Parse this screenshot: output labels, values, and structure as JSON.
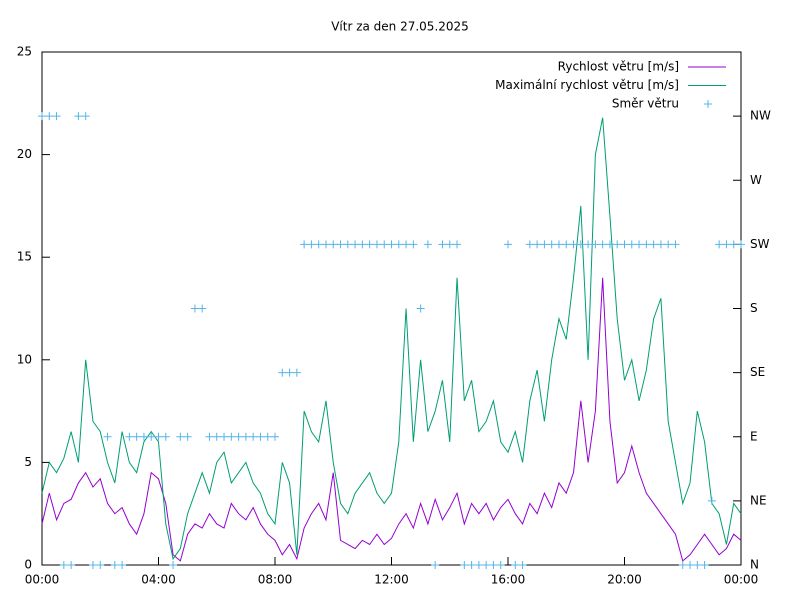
{
  "chart_data": {
    "type": "line",
    "title": "Vítr za den 27.05.2025",
    "x": [
      0,
      0.25,
      0.5,
      0.75,
      1,
      1.25,
      1.5,
      1.75,
      2,
      2.25,
      2.5,
      2.75,
      3,
      3.25,
      3.5,
      3.75,
      4,
      4.25,
      4.5,
      4.75,
      5,
      5.25,
      5.5,
      5.75,
      6,
      6.25,
      6.5,
      6.75,
      7,
      7.25,
      7.5,
      7.75,
      8,
      8.25,
      8.5,
      8.75,
      9,
      9.25,
      9.5,
      9.75,
      10,
      10.25,
      10.5,
      10.75,
      11,
      11.25,
      11.5,
      11.75,
      12,
      12.25,
      12.5,
      12.75,
      13,
      13.25,
      13.5,
      13.75,
      14,
      14.25,
      14.5,
      14.75,
      15,
      15.25,
      15.5,
      15.75,
      16,
      16.25,
      16.5,
      16.75,
      17,
      17.25,
      17.5,
      17.75,
      18,
      18.25,
      18.5,
      18.75,
      19,
      19.25,
      19.5,
      19.75,
      20,
      20.25,
      20.5,
      20.75,
      21,
      21.25,
      21.5,
      21.75,
      22,
      22.25,
      22.5,
      22.75,
      23,
      23.25,
      23.5,
      23.75,
      24
    ],
    "series": [
      {
        "name": "Rychlost větru [m/s]",
        "color": "#9400d3",
        "style": "line",
        "values": [
          2.0,
          3.5,
          2.2,
          3.0,
          3.2,
          4.0,
          4.5,
          3.8,
          4.2,
          3.0,
          2.5,
          2.8,
          2.0,
          1.5,
          2.5,
          4.5,
          4.2,
          3.0,
          0.5,
          0.2,
          1.5,
          2.0,
          1.8,
          2.5,
          2.0,
          1.8,
          3.0,
          2.5,
          2.2,
          2.8,
          2.0,
          1.5,
          1.2,
          0.5,
          1.0,
          0.3,
          1.8,
          2.5,
          3.0,
          2.2,
          4.5,
          1.2,
          1.0,
          0.8,
          1.2,
          1.0,
          1.5,
          1.0,
          1.3,
          2.0,
          2.5,
          1.8,
          3.0,
          2.0,
          3.2,
          2.2,
          2.8,
          3.5,
          2.0,
          3.0,
          2.5,
          3.0,
          2.2,
          2.8,
          3.2,
          2.5,
          2.0,
          3.0,
          2.5,
          3.5,
          2.8,
          4.0,
          3.5,
          4.5,
          8.0,
          5.0,
          7.5,
          14.0,
          7.0,
          4.0,
          4.5,
          5.8,
          4.5,
          3.5,
          3.0,
          2.5,
          2.0,
          1.5,
          0.2,
          0.5,
          1.0,
          1.5,
          1.0,
          0.5,
          0.8,
          1.5,
          1.2
        ]
      },
      {
        "name": "Maximální rychlost větru [m/s]",
        "color": "#009e73",
        "style": "line",
        "values": [
          3.5,
          5.0,
          4.5,
          5.2,
          6.5,
          5.0,
          10.0,
          7.0,
          6.5,
          5.0,
          4.0,
          6.5,
          5.0,
          4.5,
          6.0,
          6.5,
          6.0,
          2.0,
          0.3,
          0.8,
          2.5,
          3.5,
          4.5,
          3.5,
          5.0,
          5.5,
          4.0,
          4.5,
          5.0,
          4.0,
          3.5,
          2.5,
          2.0,
          5.0,
          4.0,
          0.5,
          7.5,
          6.5,
          6.0,
          8.0,
          5.0,
          3.0,
          2.5,
          3.5,
          4.0,
          4.5,
          3.5,
          3.0,
          3.5,
          6.0,
          12.5,
          6.0,
          10.0,
          6.5,
          7.5,
          9.0,
          6.0,
          14.0,
          8.0,
          9.0,
          6.5,
          7.0,
          8.0,
          6.0,
          5.5,
          6.5,
          5.0,
          8.0,
          9.5,
          7.0,
          10.0,
          12.0,
          11.0,
          14.0,
          17.5,
          10.0,
          20.0,
          21.8,
          17.0,
          12.0,
          9.0,
          10.0,
          8.0,
          9.5,
          12.0,
          13.0,
          7.0,
          5.0,
          3.0,
          4.0,
          7.5,
          6.0,
          3.0,
          2.5,
          1.0,
          3.0,
          2.5
        ]
      },
      {
        "name": "Směr větru",
        "color": "#56b4e9",
        "style": "points",
        "axis": "y2",
        "values": [
          7,
          7,
          7,
          0,
          0,
          7,
          7,
          0,
          0,
          2,
          0,
          0,
          2,
          2,
          2,
          2,
          2,
          2,
          0,
          2,
          2,
          4,
          4,
          2,
          2,
          2,
          2,
          2,
          2,
          2,
          2,
          2,
          2,
          3,
          3,
          3,
          5,
          5,
          5,
          5,
          5,
          5,
          5,
          5,
          5,
          5,
          5,
          5,
          5,
          5,
          5,
          5,
          4,
          5,
          0,
          5,
          5,
          5,
          0,
          0,
          0,
          0,
          0,
          0,
          5,
          0,
          0,
          5,
          5,
          5,
          5,
          5,
          5,
          5,
          5,
          5,
          5,
          5,
          5,
          5,
          5,
          5,
          5,
          5,
          5,
          5,
          5,
          5,
          0,
          0,
          0,
          0,
          1,
          5,
          5,
          5,
          5
        ]
      }
    ],
    "xlim": [
      0,
      24
    ],
    "xticks": [
      {
        "value": 0,
        "label": "00:00"
      },
      {
        "value": 4,
        "label": "04:00"
      },
      {
        "value": 8,
        "label": "08:00"
      },
      {
        "value": 12,
        "label": "12:00"
      },
      {
        "value": 16,
        "label": "16:00"
      },
      {
        "value": 20,
        "label": "20:00"
      },
      {
        "value": 24,
        "label": "00:00"
      }
    ],
    "ylim": [
      0,
      25
    ],
    "yticks": [
      0,
      5,
      10,
      15,
      20,
      25
    ],
    "y2lim": [
      0,
      8
    ],
    "y2ticks": [
      {
        "value": 0,
        "label": "N"
      },
      {
        "value": 1,
        "label": "NE"
      },
      {
        "value": 2,
        "label": "E"
      },
      {
        "value": 3,
        "label": "SE"
      },
      {
        "value": 4,
        "label": "S"
      },
      {
        "value": 5,
        "label": "SW"
      },
      {
        "value": 6,
        "label": "W"
      },
      {
        "value": 7,
        "label": "NW"
      }
    ],
    "legend": "upper right"
  }
}
